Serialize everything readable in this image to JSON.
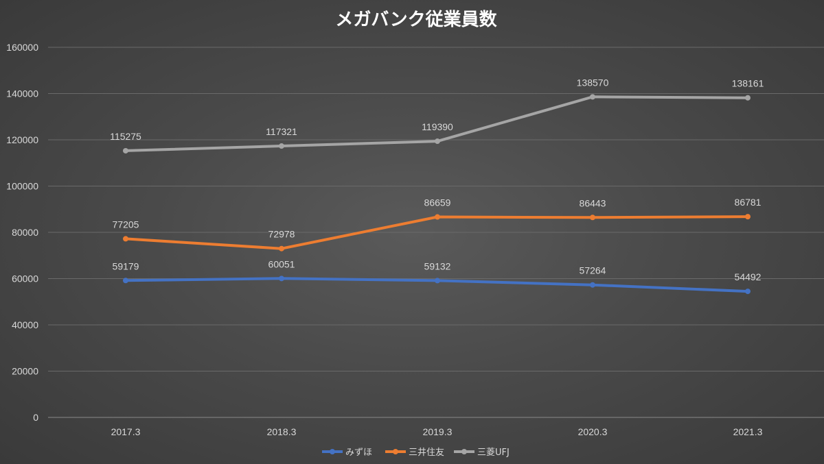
{
  "chart_data": {
    "type": "line",
    "title": "メガバンク従業員数",
    "categories": [
      "2017.3",
      "2018.3",
      "2019.3",
      "2020.3",
      "2021.3"
    ],
    "ylim": [
      0,
      160000
    ],
    "yticks": [
      0,
      20000,
      40000,
      60000,
      80000,
      100000,
      120000,
      140000,
      160000
    ],
    "grid": true,
    "legend_position": "bottom",
    "series": [
      {
        "name": "みずほ",
        "color": "#4472c4",
        "values": [
          59179,
          60051,
          59132,
          57264,
          54492
        ]
      },
      {
        "name": "三井住友",
        "color": "#ed7d31",
        "values": [
          77205,
          72978,
          86659,
          86443,
          86781
        ]
      },
      {
        "name": "三菱UFJ",
        "color": "#a5a5a5",
        "values": [
          115275,
          117321,
          119390,
          138570,
          138161
        ]
      }
    ]
  }
}
